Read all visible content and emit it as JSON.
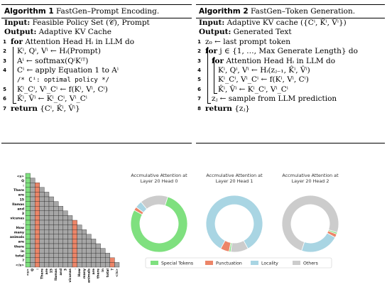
{
  "algorithm1": {
    "label": "Algorithm 1",
    "title": "FastGen–Prompt Encoding.",
    "lines": [
      {
        "num": "",
        "kw": "Input:",
        "text": " Feasible Policy Set (𝒞), Prompt"
      },
      {
        "num": "",
        "kw": "Output:",
        "text": " Adaptive KV Cache"
      },
      {
        "num": "1",
        "kw": "for",
        "text": " Attention Head Hᵢ in LLM do"
      },
      {
        "num": "2",
        "kw": "",
        "text": "Kⁱ, Qⁱ, Vⁱ ← Hᵢ(Prompt)"
      },
      {
        "num": "3",
        "kw": "",
        "text": "Aⁱ ← softmax(QⁱKⁱᵀ)"
      },
      {
        "num": "4",
        "kw": "",
        "text": "Cⁱ ← apply Equation 1 to Aⁱ"
      },
      {
        "num": "",
        "kw": "",
        "text": "/* Cⁱ: optimal policy */"
      },
      {
        "num": "5",
        "kw": "",
        "text": "Kⁱ_Cⁱ, Vⁱ_Cⁱ ← f(Kⁱ, Vⁱ, Cⁱ)"
      },
      {
        "num": "6",
        "kw": "",
        "text": "K̂ⁱ, V̂ⁱ ← Kⁱ_Cⁱ, Vⁱ_Cⁱ"
      },
      {
        "num": "7",
        "kw": "return",
        "text": " {Cⁱ, K̂ⁱ, V̂ⁱ}"
      }
    ]
  },
  "algorithm2": {
    "label": "Algorithm 2",
    "title": "FastGen–Token Generation.",
    "lines": [
      {
        "num": "",
        "kw": "Input:",
        "text": " Adaptive KV cache ({Cⁱ, K̂ⁱ, V̂ⁱ})"
      },
      {
        "num": "",
        "kw": "Output:",
        "text": " Generated Text"
      },
      {
        "num": "1",
        "kw": "",
        "text": "z₀ ← last prompt token"
      },
      {
        "num": "2",
        "kw": "for",
        "text": " j ∈ {1, …, Max Generate Length} do"
      },
      {
        "num": "3",
        "kw": "for",
        "text": " Attention Head Hᵢ in LLM do"
      },
      {
        "num": "4",
        "kw": "",
        "text": "Kⁱ, Qⁱ, Vⁱ ← Hᵢ(zⱼ₋₁, K̂ⁱ, V̂ⁱ)"
      },
      {
        "num": "5",
        "kw": "",
        "text": "Kⁱ_Cⁱ, Vⁱ_Cⁱ ← f(Kⁱ, Vⁱ, Cⁱ)"
      },
      {
        "num": "6",
        "kw": "",
        "text": "K̂ⁱ, V̂ⁱ ← Kⁱ_Cⁱ, Vⁱ_Cⁱ"
      },
      {
        "num": "7",
        "kw": "",
        "text": "zⱼ ← sample from LLM prediction"
      },
      {
        "num": "8",
        "kw": "return",
        "text": " {zⱼ}"
      }
    ]
  },
  "heatmap": {
    "tokens": [
      "<s>",
      "Q",
      ":",
      "There",
      "are",
      "15",
      "llamas",
      "and",
      "3",
      "vicunas",
      ".",
      "How",
      "many",
      "animals",
      "are",
      "there",
      "in",
      "total",
      "?",
      "</s>"
    ],
    "colors": {
      "grid": "#a6a6a6",
      "special": "#7fe07f",
      "punct": "#ec8568"
    },
    "special_index": 0,
    "punct_indices": [
      2,
      10,
      18
    ]
  },
  "chart_data": [
    {
      "type": "pie",
      "title": "Accmulative Attention at Layer 20 Head 0",
      "categories": [
        "Special Tokens",
        "Punctuation",
        "Locality",
        "Others"
      ],
      "values": [
        78,
        2,
        4,
        16
      ]
    },
    {
      "type": "pie",
      "title": "Accmulative Attention at Layer 20 Head 1",
      "categories": [
        "Special Tokens",
        "Punctuation",
        "Locality",
        "Others"
      ],
      "values": [
        1,
        5,
        84,
        10
      ]
    },
    {
      "type": "pie",
      "title": "Accmulative Attention at Layer 20 Head 2",
      "categories": [
        "Special Tokens",
        "Punctuation",
        "Locality",
        "Others"
      ],
      "values": [
        1,
        2,
        22,
        75
      ]
    }
  ],
  "legend": {
    "items": [
      {
        "label": "Special Tokens",
        "color": "#7fe07f"
      },
      {
        "label": "Punctuation",
        "color": "#ec8568"
      },
      {
        "label": "Locality",
        "color": "#a9d5e3"
      },
      {
        "label": "Others",
        "color": "#cccccc"
      }
    ]
  }
}
